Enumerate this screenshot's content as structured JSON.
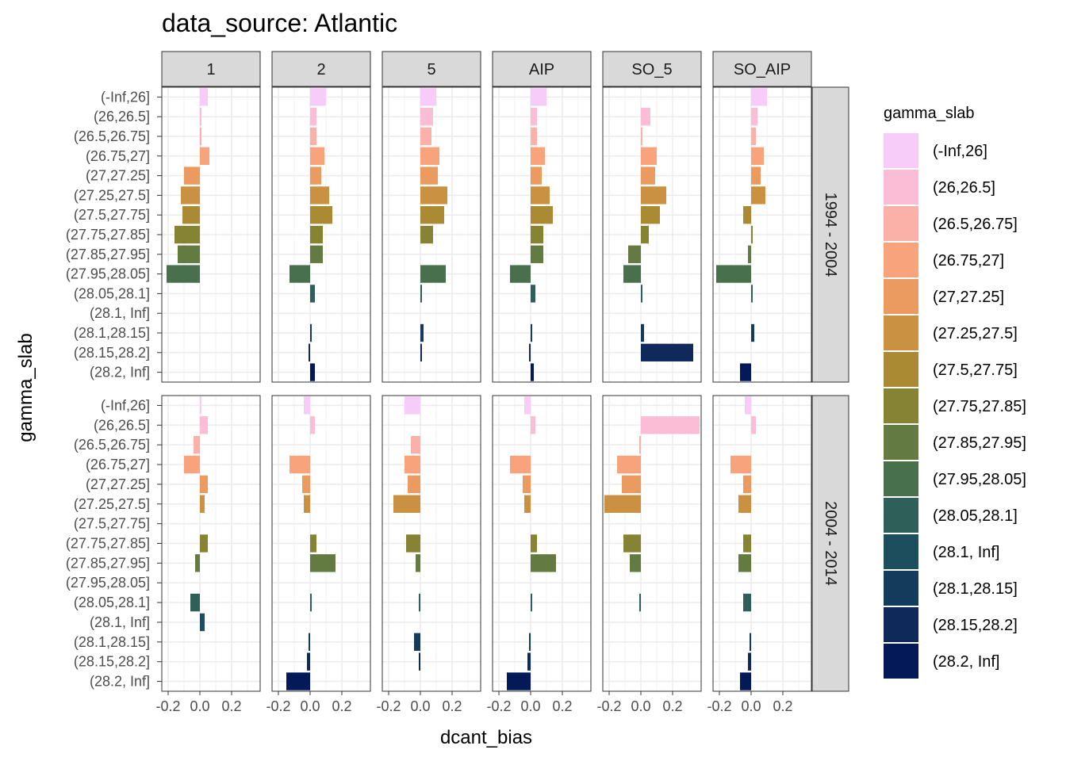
{
  "chart_data": {
    "type": "bar",
    "orientation": "horizontal",
    "title": "data_source: Atlantic",
    "xlabel": "dcant_bias",
    "ylabel": "gamma_slab",
    "xlim": [
      -0.24,
      0.38
    ],
    "x_ticks": [
      -0.2,
      0.0,
      0.2
    ],
    "x_tick_labels": [
      "-0.2",
      "0.0",
      "0.2"
    ],
    "grid": true,
    "legend_position": "right",
    "legend_title": "gamma_slab",
    "categories": [
      "(-Inf,26]",
      "(26,26.5]",
      "(26.5,26.75]",
      "(26.75,27]",
      "(27,27.25]",
      "(27.25,27.5]",
      "(27.5,27.75]",
      "(27.75,27.85]",
      "(27.85,27.95]",
      "(27.95,28.05]",
      "(28.05,28.1]",
      "(28.1, Inf]",
      "(28.1,28.15]",
      "(28.15,28.2]",
      "(28.2, Inf]"
    ],
    "colors": [
      "#F8CCF8",
      "#FBBCD6",
      "#FBB0A8",
      "#F8A37C",
      "#EC9B60",
      "#CA9240",
      "#AA8B33",
      "#868333",
      "#637B40",
      "#49704C",
      "#2E5F59",
      "#1C4E5E",
      "#133B5C",
      "#0F2A5A",
      "#041A58"
    ],
    "col_facets": [
      "1",
      "2",
      "5",
      "AIP",
      "SO_5",
      "SO_AIP"
    ],
    "row_facets": [
      "1994 - 2004",
      "2004 - 2014"
    ],
    "panels": [
      [
        {
          "col": "1",
          "values": [
            0.05,
            0.01,
            0.01,
            0.06,
            -0.1,
            -0.12,
            -0.11,
            -0.16,
            -0.14,
            -0.21,
            null,
            null,
            null,
            null,
            null
          ]
        },
        {
          "col": "2",
          "values": [
            0.1,
            0.04,
            0.04,
            0.09,
            0.07,
            0.12,
            0.14,
            0.08,
            0.08,
            -0.13,
            0.03,
            null,
            0.01,
            -0.01,
            0.03
          ]
        },
        {
          "col": "5",
          "values": [
            0.1,
            0.08,
            0.07,
            0.12,
            0.11,
            0.17,
            0.15,
            0.08,
            null,
            0.16,
            0.01,
            null,
            0.02,
            0.01,
            null
          ]
        },
        {
          "col": "AIP",
          "values": [
            0.1,
            0.04,
            0.04,
            0.09,
            0.07,
            0.12,
            0.14,
            0.08,
            0.08,
            -0.13,
            0.03,
            null,
            0.01,
            -0.01,
            0.02
          ]
        },
        {
          "col": "SO_5",
          "values": [
            null,
            0.06,
            0.01,
            0.1,
            0.09,
            0.16,
            0.12,
            0.05,
            -0.08,
            -0.11,
            0.01,
            null,
            0.02,
            0.33,
            null
          ]
        },
        {
          "col": "SO_AIP",
          "values": [
            0.1,
            0.04,
            0.03,
            0.08,
            0.06,
            0.09,
            -0.05,
            0.01,
            -0.02,
            -0.22,
            0.01,
            null,
            0.02,
            null,
            -0.07
          ]
        }
      ],
      [
        {
          "col": "1",
          "values": [
            0.01,
            0.05,
            -0.04,
            -0.1,
            0.05,
            0.03,
            null,
            0.05,
            -0.03,
            null,
            -0.06,
            0.03,
            null,
            null,
            null
          ]
        },
        {
          "col": "2",
          "values": [
            -0.04,
            0.03,
            null,
            -0.13,
            -0.05,
            -0.04,
            null,
            0.04,
            0.16,
            null,
            0.01,
            null,
            -0.01,
            -0.02,
            -0.15
          ]
        },
        {
          "col": "5",
          "values": [
            -0.1,
            null,
            -0.06,
            -0.1,
            -0.08,
            -0.17,
            null,
            -0.09,
            -0.03,
            null,
            -0.01,
            null,
            -0.04,
            -0.01,
            null
          ]
        },
        {
          "col": "AIP",
          "values": [
            -0.04,
            0.03,
            null,
            -0.13,
            -0.05,
            -0.04,
            null,
            0.04,
            0.16,
            null,
            0.01,
            null,
            -0.01,
            -0.02,
            -0.15
          ]
        },
        {
          "col": "SO_5",
          "values": [
            null,
            0.37,
            -0.01,
            -0.15,
            -0.12,
            -0.23,
            null,
            -0.11,
            -0.07,
            null,
            -0.01,
            null,
            null,
            null,
            null
          ]
        },
        {
          "col": "SO_AIP",
          "values": [
            -0.04,
            0.03,
            null,
            -0.13,
            -0.05,
            -0.08,
            null,
            -0.05,
            -0.08,
            null,
            -0.05,
            null,
            -0.01,
            -0.02,
            -0.07
          ]
        }
      ]
    ]
  }
}
